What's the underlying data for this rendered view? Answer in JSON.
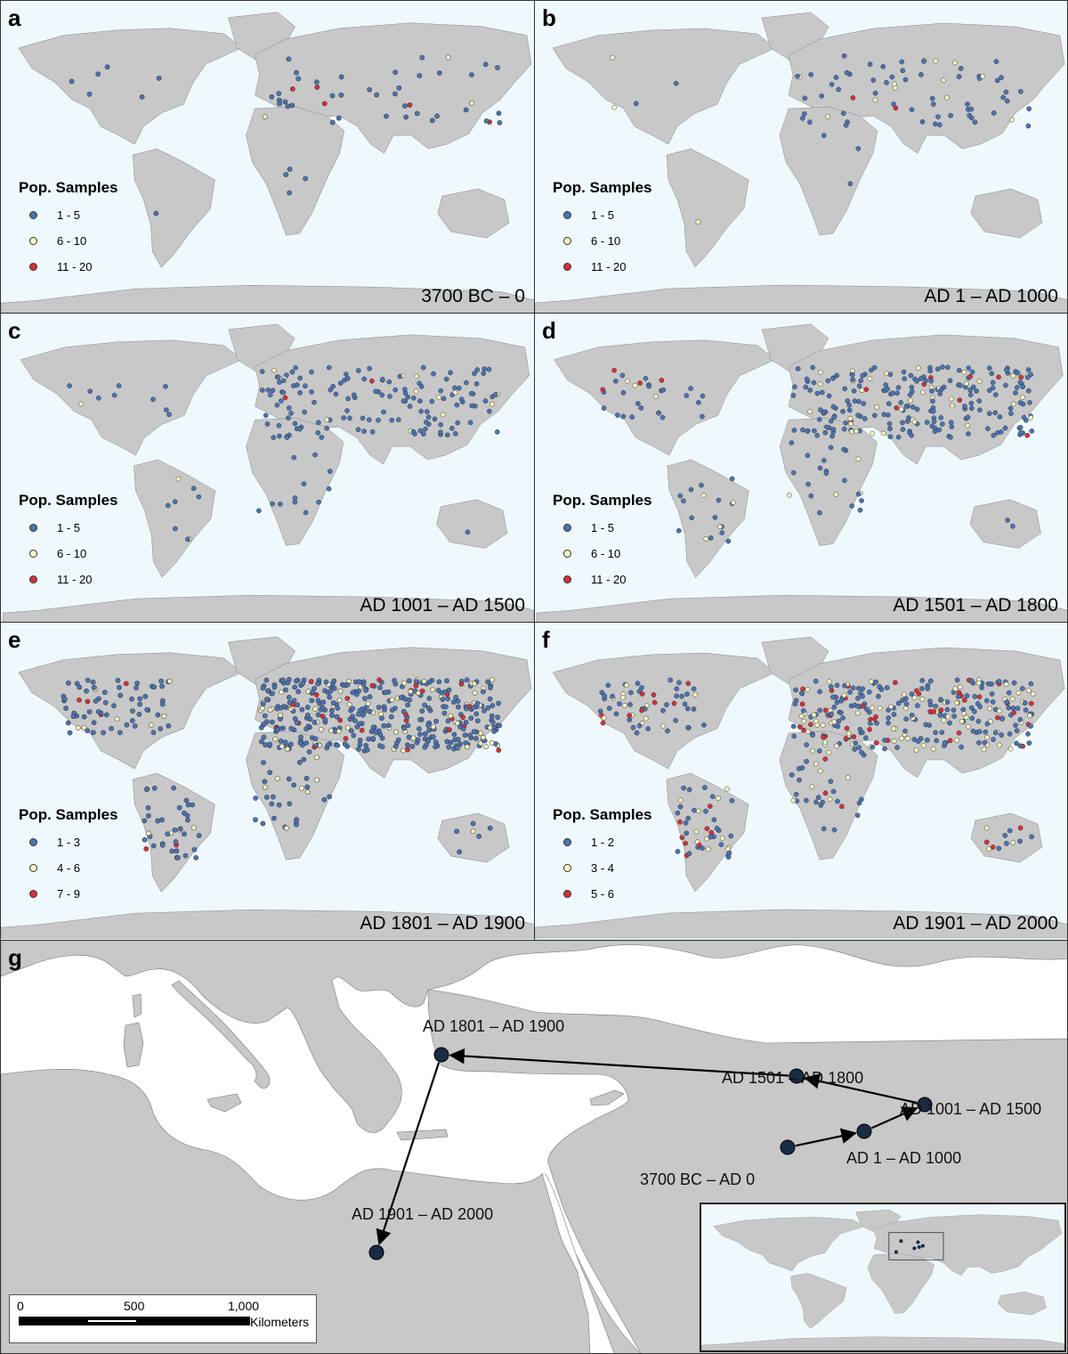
{
  "panels": [
    {
      "letter": "a",
      "period": "3700 BC – 0",
      "legend_title": "Pop. Samples",
      "legend": [
        "1 - 5",
        "6 - 10",
        "11 - 20"
      ]
    },
    {
      "letter": "b",
      "period": "AD 1 – AD 1000",
      "legend_title": "Pop. Samples",
      "legend": [
        "1 - 5",
        "6 - 10",
        "11 - 20"
      ]
    },
    {
      "letter": "c",
      "period": "AD 1001 – AD 1500",
      "legend_title": "Pop. Samples",
      "legend": [
        "1 - 5",
        "6 - 10",
        "11 - 20"
      ]
    },
    {
      "letter": "d",
      "period": "AD 1501 – AD 1800",
      "legend_title": "Pop. Samples",
      "legend": [
        "1 - 5",
        "6 - 10",
        "11 - 20"
      ]
    },
    {
      "letter": "e",
      "period": "AD 1801 – AD 1900",
      "legend_title": "Pop. Samples",
      "legend": [
        "1 - 3",
        "4 - 6",
        "7 - 9"
      ]
    },
    {
      "letter": "f",
      "period": "AD 1901 – AD 2000",
      "legend_title": "Pop. Samples",
      "legend": [
        "1 - 2",
        "3 - 4",
        "5 - 6"
      ]
    }
  ],
  "legend_colors": [
    "#4a74b4",
    "#fbf7c3",
    "#d7303a"
  ],
  "panel_g": {
    "letter": "g",
    "path_labels": [
      "3700 BC – AD 0",
      "AD 1 – AD 1000",
      "AD 1001 – AD 1500",
      "AD 1501 – AD 1800",
      "AD 1801 – AD 1900",
      "AD 1901 – AD 2000"
    ],
    "scale": {
      "ticks": [
        "0",
        "500",
        "1,000"
      ],
      "unit": "Kilometers"
    }
  },
  "colors": {
    "land": "#c8c8c8",
    "ocean": "#eff9fd",
    "border": "#333333",
    "path_point": "#1a2b45"
  }
}
